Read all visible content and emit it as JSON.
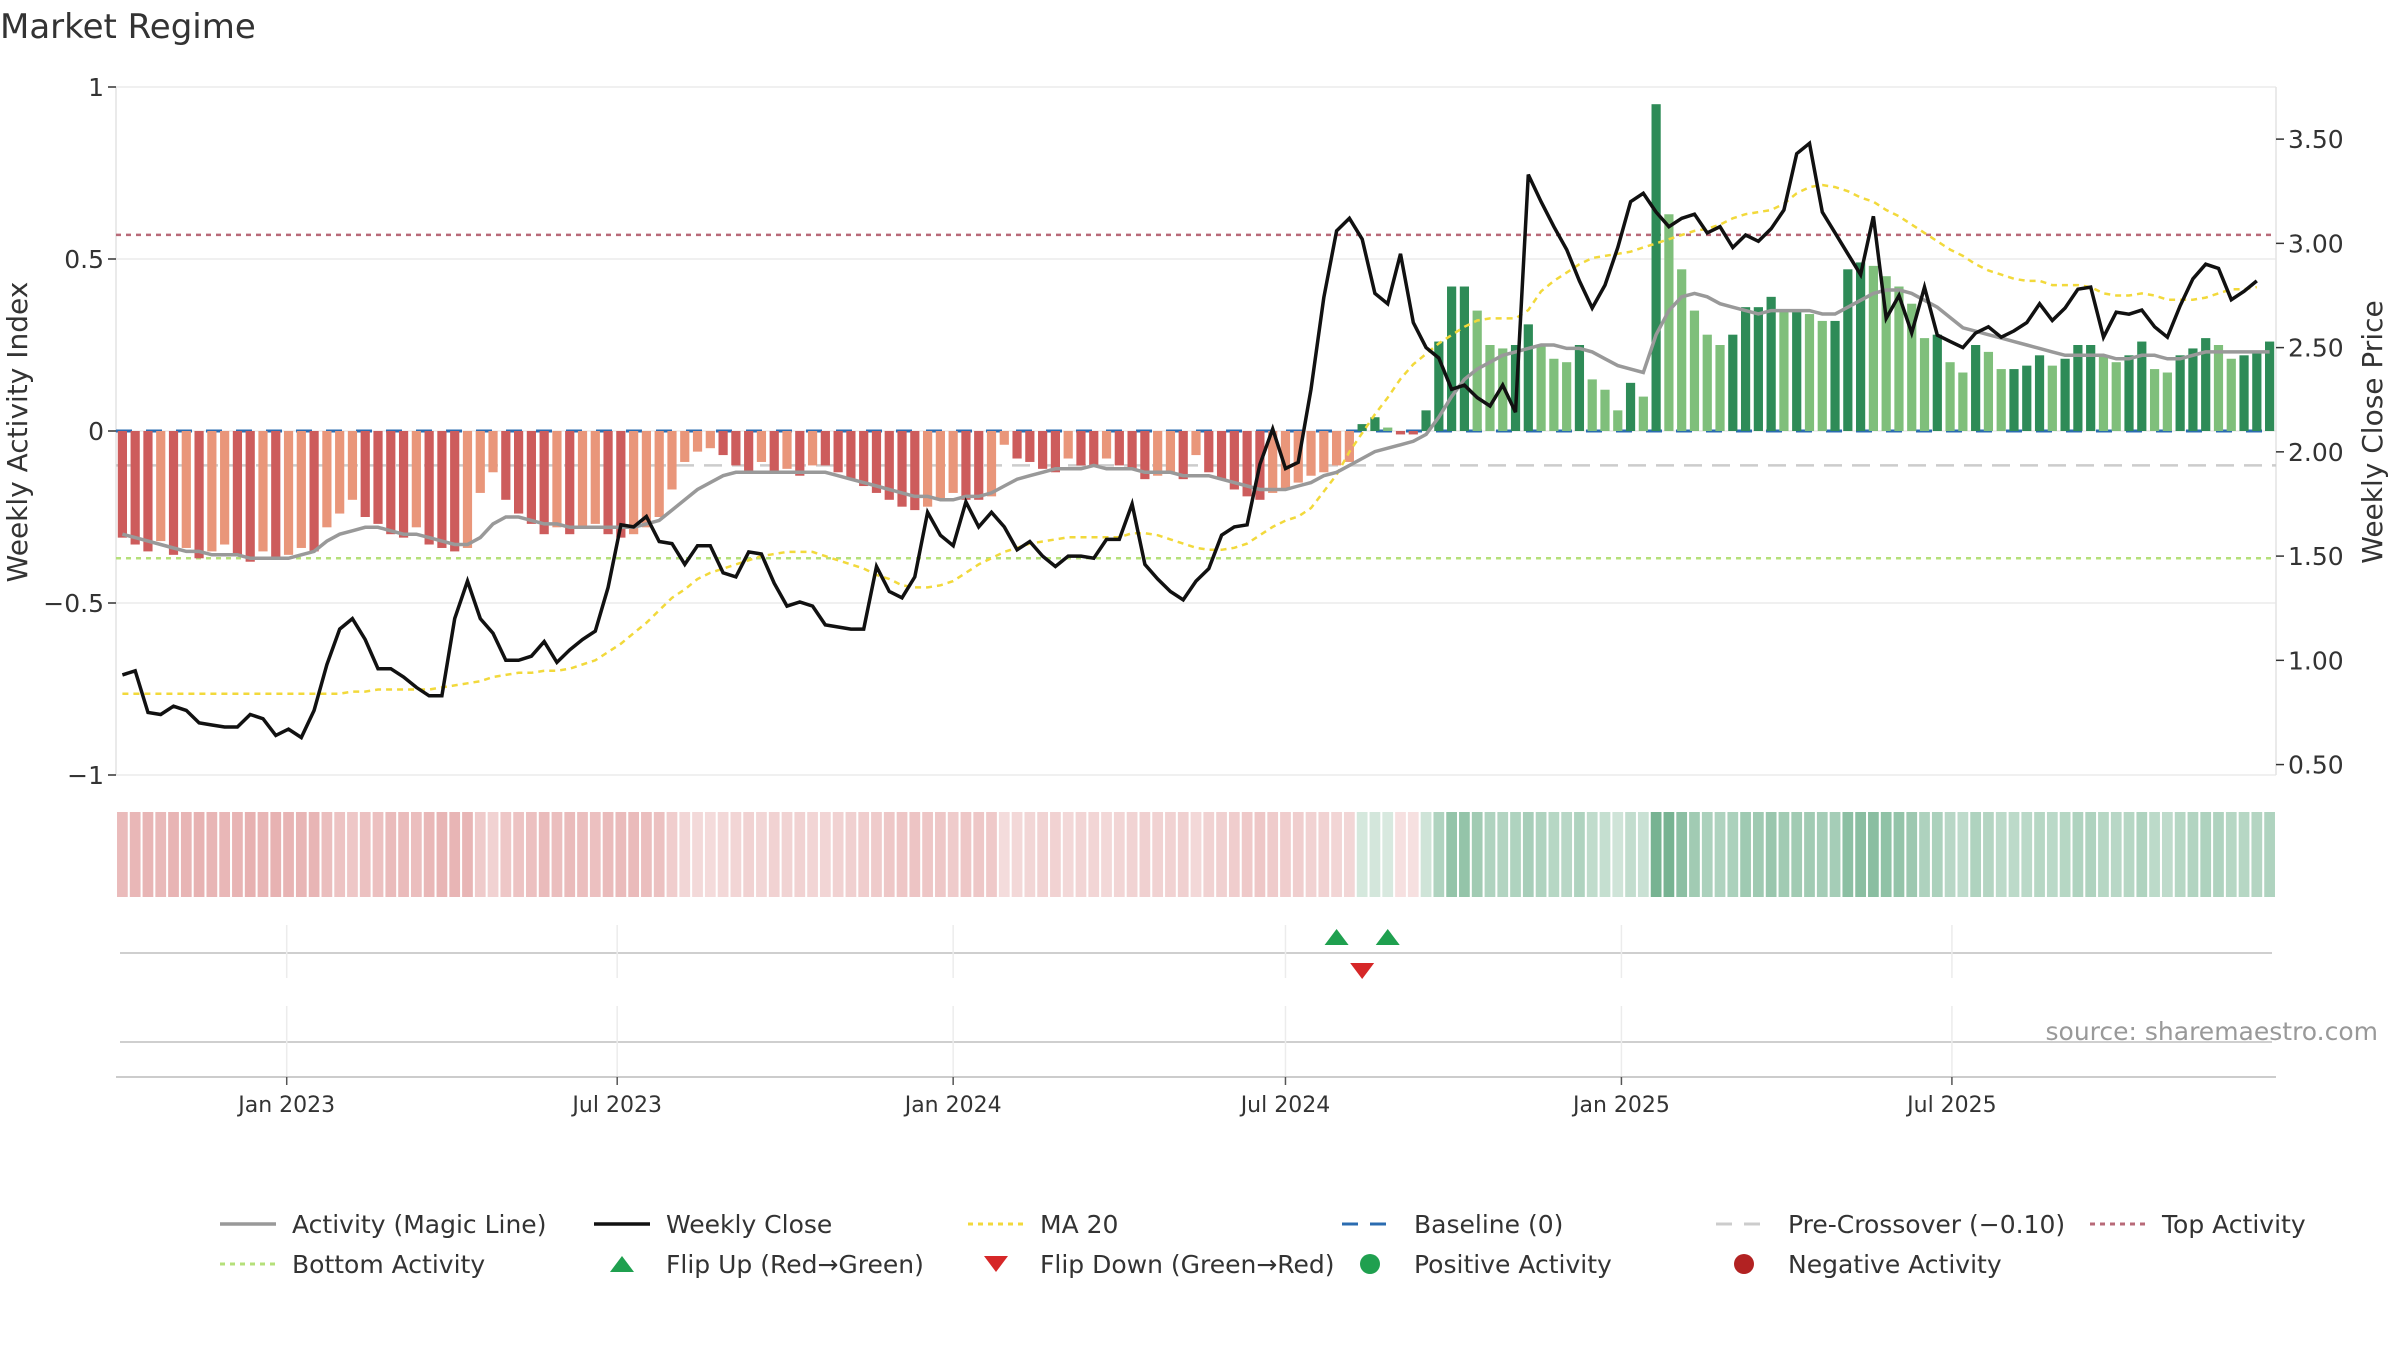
{
  "title": "Market Regime",
  "source": "source: sharemaestro.com",
  "colors": {
    "neg_dark": "#cd5c5c",
    "neg_light": "#e9967a",
    "pos_dark": "#2e8b57",
    "pos_light": "#7fbf7b",
    "magic": "#999999",
    "close": "#111111",
    "ma20": "#f2d93b",
    "baseline": "#2b6cb0",
    "pre_crossover": "#cccccc",
    "top": "#b86a78",
    "bottom": "#b5e07a",
    "flip_up": "#1fa04f",
    "flip_down": "#d62728"
  },
  "chart_data": {
    "type": "bar",
    "x_start": "2022-10-03",
    "x_interval_days": 7,
    "axes": {
      "left": {
        "label": "Weekly Activity Index",
        "ylim": [
          -1.0,
          1.0
        ],
        "ticks": [
          1,
          0.5,
          0,
          -0.5,
          -1
        ],
        "tick_labels": [
          "1",
          "0.5",
          "0",
          "−0.5",
          "−1"
        ]
      },
      "right": {
        "label": "Weekly Close Price",
        "ylim": [
          0.45,
          3.75
        ],
        "ticks": [
          3.5,
          3.0,
          2.5,
          2.0,
          1.5,
          1.0,
          0.5
        ],
        "tick_labels": [
          "3.50",
          "3.00",
          "2.50",
          "2.00",
          "1.50",
          "1.00",
          "0.50"
        ]
      },
      "x": {
        "tick_dates": [
          "2023-01-01",
          "2023-07-01",
          "2024-01-01",
          "2024-07-01",
          "2025-01-01",
          "2025-07-01"
        ],
        "tick_labels": [
          "Jan 2023",
          "Jul 2023",
          "Jan 2024",
          "Jul 2024",
          "Jan 2025",
          "Jul 2025"
        ]
      }
    },
    "reference_lines": {
      "baseline": 0,
      "pre_crossover": -0.1,
      "top_activity": 0.57,
      "bottom_activity": -0.37
    },
    "activity": [
      -0.31,
      -0.33,
      -0.35,
      -0.32,
      -0.36,
      -0.34,
      -0.37,
      -0.35,
      -0.33,
      -0.36,
      -0.38,
      -0.35,
      -0.37,
      -0.36,
      -0.34,
      -0.35,
      -0.28,
      -0.24,
      -0.2,
      -0.25,
      -0.27,
      -0.3,
      -0.31,
      -0.28,
      -0.33,
      -0.34,
      -0.35,
      -0.34,
      -0.18,
      -0.12,
      -0.2,
      -0.24,
      -0.27,
      -0.3,
      -0.28,
      -0.3,
      -0.28,
      -0.27,
      -0.3,
      -0.31,
      -0.3,
      -0.28,
      -0.25,
      -0.17,
      -0.09,
      -0.06,
      -0.05,
      -0.07,
      -0.1,
      -0.12,
      -0.09,
      -0.12,
      -0.11,
      -0.13,
      -0.1,
      -0.1,
      -0.12,
      -0.14,
      -0.16,
      -0.18,
      -0.2,
      -0.22,
      -0.23,
      -0.22,
      -0.2,
      -0.18,
      -0.2,
      -0.2,
      -0.19,
      -0.04,
      -0.08,
      -0.09,
      -0.11,
      -0.12,
      -0.08,
      -0.1,
      -0.1,
      -0.08,
      -0.1,
      -0.11,
      -0.14,
      -0.13,
      -0.12,
      -0.14,
      -0.07,
      -0.12,
      -0.14,
      -0.17,
      -0.19,
      -0.2,
      -0.18,
      -0.17,
      -0.15,
      -0.13,
      -0.12,
      -0.1,
      -0.09,
      0.02,
      0.04,
      0.01,
      -0.01,
      -0.01,
      0.06,
      0.26,
      0.42,
      0.42,
      0.35,
      0.25,
      0.24,
      0.25,
      0.31,
      0.25,
      0.21,
      0.2,
      0.25,
      0.15,
      0.12,
      0.06,
      0.14,
      0.1,
      0.95,
      0.63,
      0.47,
      0.35,
      0.28,
      0.25,
      0.28,
      0.36,
      0.36,
      0.39,
      0.35,
      0.35,
      0.34,
      0.32,
      0.32,
      0.47,
      0.49,
      0.48,
      0.45,
      0.42,
      0.37,
      0.27,
      0.28,
      0.2,
      0.17,
      0.25,
      0.23,
      0.18,
      0.18,
      0.19,
      0.22,
      0.19,
      0.21,
      0.25,
      0.25,
      0.22,
      0.2,
      0.22,
      0.26,
      0.18,
      0.17,
      0.22,
      0.24,
      0.27,
      0.25,
      0.21,
      0.22,
      0.23,
      0.26
    ],
    "magic_line": [
      -0.3,
      -0.31,
      -0.32,
      -0.33,
      -0.34,
      -0.35,
      -0.35,
      -0.36,
      -0.36,
      -0.36,
      -0.37,
      -0.37,
      -0.37,
      -0.37,
      -0.36,
      -0.35,
      -0.32,
      -0.3,
      -0.29,
      -0.28,
      -0.28,
      -0.29,
      -0.3,
      -0.3,
      -0.31,
      -0.32,
      -0.33,
      -0.33,
      -0.31,
      -0.27,
      -0.25,
      -0.25,
      -0.26,
      -0.27,
      -0.27,
      -0.28,
      -0.28,
      -0.28,
      -0.28,
      -0.28,
      -0.28,
      -0.27,
      -0.26,
      -0.23,
      -0.2,
      -0.17,
      -0.15,
      -0.13,
      -0.12,
      -0.12,
      -0.12,
      -0.12,
      -0.12,
      -0.12,
      -0.12,
      -0.12,
      -0.13,
      -0.14,
      -0.15,
      -0.16,
      -0.17,
      -0.18,
      -0.19,
      -0.19,
      -0.2,
      -0.2,
      -0.19,
      -0.19,
      -0.18,
      -0.16,
      -0.14,
      -0.13,
      -0.12,
      -0.11,
      -0.11,
      -0.11,
      -0.1,
      -0.11,
      -0.11,
      -0.11,
      -0.12,
      -0.12,
      -0.12,
      -0.13,
      -0.13,
      -0.13,
      -0.14,
      -0.15,
      -0.16,
      -0.17,
      -0.17,
      -0.17,
      -0.16,
      -0.15,
      -0.13,
      -0.12,
      -0.1,
      -0.08,
      -0.06,
      -0.05,
      -0.04,
      -0.03,
      -0.01,
      0.04,
      0.1,
      0.15,
      0.18,
      0.2,
      0.22,
      0.23,
      0.24,
      0.25,
      0.25,
      0.24,
      0.24,
      0.23,
      0.21,
      0.19,
      0.18,
      0.17,
      0.28,
      0.35,
      0.39,
      0.4,
      0.39,
      0.37,
      0.36,
      0.35,
      0.34,
      0.35,
      0.35,
      0.35,
      0.35,
      0.34,
      0.34,
      0.36,
      0.38,
      0.4,
      0.41,
      0.41,
      0.4,
      0.38,
      0.36,
      0.33,
      0.3,
      0.29,
      0.28,
      0.27,
      0.26,
      0.25,
      0.24,
      0.23,
      0.22,
      0.22,
      0.22,
      0.22,
      0.21,
      0.21,
      0.22,
      0.22,
      0.21,
      0.21,
      0.22,
      0.23,
      0.23,
      0.23,
      0.23,
      0.23,
      0.23
    ],
    "weekly_close": [
      0.93,
      0.95,
      0.75,
      0.74,
      0.78,
      0.76,
      0.7,
      0.69,
      0.68,
      0.68,
      0.74,
      0.72,
      0.64,
      0.67,
      0.63,
      0.76,
      0.98,
      1.15,
      1.2,
      1.1,
      0.96,
      0.96,
      0.92,
      0.87,
      0.83,
      0.83,
      1.2,
      1.38,
      1.2,
      1.13,
      1.0,
      1.0,
      1.02,
      1.09,
      0.99,
      1.05,
      1.1,
      1.14,
      1.35,
      1.65,
      1.64,
      1.69,
      1.57,
      1.56,
      1.46,
      1.55,
      1.55,
      1.42,
      1.4,
      1.52,
      1.51,
      1.37,
      1.26,
      1.28,
      1.26,
      1.17,
      1.16,
      1.15,
      1.15,
      1.45,
      1.33,
      1.3,
      1.4,
      1.71,
      1.6,
      1.55,
      1.76,
      1.64,
      1.71,
      1.64,
      1.53,
      1.57,
      1.5,
      1.45,
      1.5,
      1.5,
      1.49,
      1.58,
      1.58,
      1.75,
      1.46,
      1.39,
      1.33,
      1.29,
      1.38,
      1.44,
      1.6,
      1.64,
      1.65,
      1.94,
      2.11,
      1.92,
      1.95,
      2.3,
      2.74,
      3.06,
      3.12,
      3.02,
      2.76,
      2.71,
      2.95,
      2.62,
      2.5,
      2.45,
      2.3,
      2.32,
      2.26,
      2.22,
      2.32,
      2.19,
      3.33,
      3.2,
      3.08,
      2.97,
      2.82,
      2.69,
      2.8,
      2.98,
      3.2,
      3.24,
      3.15,
      3.08,
      3.12,
      3.14,
      3.05,
      3.08,
      2.98,
      3.04,
      3.01,
      3.07,
      3.16,
      3.43,
      3.48,
      3.15,
      3.05,
      2.95,
      2.85,
      3.13,
      2.64,
      2.75,
      2.57,
      2.79,
      2.56,
      2.53,
      2.5,
      2.57,
      2.6,
      2.55,
      2.58,
      2.62,
      2.71,
      2.63,
      2.69,
      2.78,
      2.79,
      2.55,
      2.67,
      2.66,
      2.68,
      2.6,
      2.55,
      2.7,
      2.83,
      2.9,
      2.88,
      2.73,
      2.77,
      2.82
    ],
    "ma20": [
      0.84,
      0.84,
      0.84,
      0.84,
      0.84,
      0.84,
      0.84,
      0.84,
      0.84,
      0.84,
      0.84,
      0.84,
      0.84,
      0.84,
      0.84,
      0.84,
      0.84,
      0.84,
      0.85,
      0.85,
      0.86,
      0.86,
      0.86,
      0.86,
      0.86,
      0.87,
      0.88,
      0.89,
      0.9,
      0.92,
      0.93,
      0.94,
      0.94,
      0.95,
      0.95,
      0.96,
      0.98,
      1.0,
      1.04,
      1.08,
      1.13,
      1.18,
      1.24,
      1.3,
      1.34,
      1.39,
      1.42,
      1.44,
      1.46,
      1.48,
      1.5,
      1.51,
      1.52,
      1.52,
      1.52,
      1.5,
      1.48,
      1.46,
      1.44,
      1.41,
      1.39,
      1.36,
      1.35,
      1.35,
      1.36,
      1.38,
      1.42,
      1.46,
      1.49,
      1.52,
      1.54,
      1.56,
      1.57,
      1.58,
      1.59,
      1.59,
      1.59,
      1.59,
      1.59,
      1.61,
      1.61,
      1.6,
      1.58,
      1.56,
      1.54,
      1.53,
      1.53,
      1.54,
      1.56,
      1.6,
      1.64,
      1.67,
      1.69,
      1.73,
      1.81,
      1.89,
      2.0,
      2.09,
      2.18,
      2.26,
      2.35,
      2.42,
      2.47,
      2.52,
      2.56,
      2.6,
      2.63,
      2.64,
      2.64,
      2.64,
      2.68,
      2.77,
      2.82,
      2.86,
      2.9,
      2.93,
      2.94,
      2.95,
      2.96,
      2.98,
      3.0,
      3.02,
      3.04,
      3.06,
      3.07,
      3.09,
      3.12,
      3.14,
      3.15,
      3.16,
      3.19,
      3.24,
      3.27,
      3.28,
      3.27,
      3.25,
      3.22,
      3.2,
      3.16,
      3.13,
      3.09,
      3.05,
      3.01,
      2.97,
      2.94,
      2.9,
      2.87,
      2.85,
      2.83,
      2.82,
      2.82,
      2.8,
      2.8,
      2.8,
      2.79,
      2.76,
      2.75,
      2.75,
      2.76,
      2.75,
      2.73,
      2.73,
      2.73,
      2.74,
      2.76,
      2.78,
      2.78,
      2.79
    ],
    "flips": [
      {
        "week": 95,
        "type": "up"
      },
      {
        "week": 97,
        "type": "down"
      },
      {
        "week": 99,
        "type": "up"
      }
    ],
    "legend": [
      {
        "label": "Activity (Magic Line)",
        "symbol": "line",
        "color": "#999999"
      },
      {
        "label": "Weekly Close",
        "symbol": "line",
        "color": "#111111"
      },
      {
        "label": "MA 20",
        "symbol": "dotted",
        "color": "#f2d93b"
      },
      {
        "label": "Baseline (0)",
        "symbol": "dashed",
        "color": "#2b6cb0"
      },
      {
        "label": "Pre-Crossover (−0.10)",
        "symbol": "dashed",
        "color": "#cccccc"
      },
      {
        "label": "Top Activity",
        "symbol": "dotted",
        "color": "#b86a78"
      },
      {
        "label": "Bottom Activity",
        "symbol": "dotted",
        "color": "#b5e07a"
      },
      {
        "label": "Flip Up (Red→Green)",
        "symbol": "triangle-up",
        "color": "#1fa04f"
      },
      {
        "label": "Flip Down (Green→Red)",
        "symbol": "triangle-down",
        "color": "#d62728"
      },
      {
        "label": "Positive Activity",
        "symbol": "circle",
        "color": "#1fa04f"
      },
      {
        "label": "Negative Activity",
        "symbol": "circle",
        "color": "#b22222"
      }
    ]
  }
}
